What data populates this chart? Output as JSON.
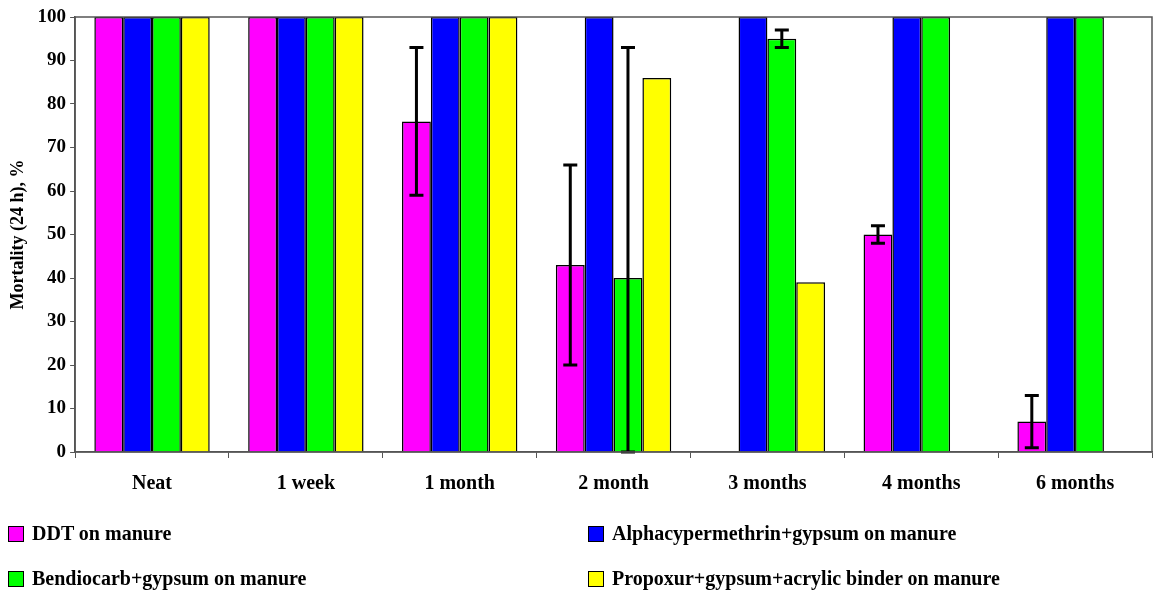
{
  "chart_data": {
    "type": "bar",
    "ylabel": "Mortality (24 h), %",
    "categories": [
      "Neat",
      "1 week",
      "1 month",
      "2 month",
      "3 months",
      "4 months",
      "6 months"
    ],
    "series": [
      {
        "name": "DDT on manure",
        "color": "#ff00ff",
        "values": [
          100,
          100,
          76,
          43,
          null,
          50,
          7
        ],
        "errors": [
          null,
          null,
          [
            59,
            93
          ],
          [
            20,
            66
          ],
          null,
          [
            48,
            52
          ],
          [
            1,
            13
          ]
        ]
      },
      {
        "name": "Alphacypermethrin+gypsum on manure",
        "color": "#0000ff",
        "values": [
          100,
          100,
          100,
          100,
          100,
          100,
          100
        ]
      },
      {
        "name": "Bendiocarb+gypsum on manure",
        "color": "#00ff00",
        "values": [
          100,
          100,
          100,
          40,
          95,
          100,
          100
        ],
        "errors": [
          null,
          null,
          null,
          [
            0,
            93
          ],
          [
            93,
            97
          ],
          null,
          null
        ]
      },
      {
        "name": "Propoxur+gypsum+acrylic binder on manure",
        "color": "#ffff00",
        "values": [
          100,
          100,
          100,
          86,
          39,
          null,
          null
        ]
      }
    ],
    "ylim": [
      0,
      100
    ],
    "yticks": [
      0,
      10,
      20,
      30,
      40,
      50,
      60,
      70,
      80,
      90,
      100
    ],
    "grid": false,
    "legend": "bottom"
  }
}
